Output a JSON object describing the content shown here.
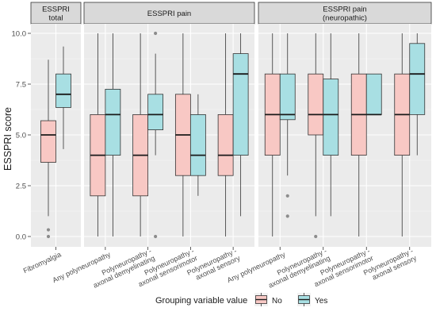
{
  "chart_data": {
    "type": "boxplot",
    "ylabel": "ESSPRI score",
    "ylim": [
      0,
      10
    ],
    "y_ticks": [
      "0.0",
      "2.5",
      "5.0",
      "7.5",
      "10.0"
    ],
    "grid": true,
    "legend": {
      "title": "Grouping variable value",
      "placement": "bottom",
      "entries": [
        {
          "label": "No",
          "color": "#f8c8c4"
        },
        {
          "label": "Yes",
          "color": "#a8dfe3"
        }
      ]
    },
    "colors": {
      "No": "#f8c8c4",
      "Yes": "#a8dfe3",
      "panel": "#ebebeb",
      "strip": "#d9d9d9",
      "outlier": "#8c8c8c"
    },
    "panels": [
      {
        "strip": [
          "ESSPRI",
          "total"
        ],
        "categories": [
          {
            "label": [
              "Fibromyalgia"
            ],
            "No": {
              "whisker_low": 1.0,
              "q1": 3.65,
              "median": 5.0,
              "q3": 5.7,
              "whisker_high": 8.7,
              "outliers": [
                0.0,
                0.33
              ]
            },
            "Yes": {
              "whisker_low": 4.3,
              "q1": 6.35,
              "median": 7.0,
              "q3": 8.0,
              "whisker_high": 9.35,
              "outliers": []
            }
          }
        ]
      },
      {
        "strip": [
          "ESSPRI pain"
        ],
        "categories": [
          {
            "label": [
              "Any polyneuropathy"
            ],
            "No": {
              "whisker_low": 0.0,
              "q1": 2.0,
              "median": 4.0,
              "q3": 6.0,
              "whisker_high": 10.0,
              "outliers": []
            },
            "Yes": {
              "whisker_low": 0.0,
              "q1": 4.0,
              "median": 6.0,
              "q3": 7.25,
              "whisker_high": 10.0,
              "outliers": []
            }
          },
          {
            "label": [
              "Polyneuropathy -",
              "axonal demyelinating"
            ],
            "No": {
              "whisker_low": 0.0,
              "q1": 2.0,
              "median": 4.0,
              "q3": 6.0,
              "whisker_high": 10.0,
              "outliers": []
            },
            "Yes": {
              "whisker_low": 4.0,
              "q1": 5.25,
              "median": 6.0,
              "q3": 7.0,
              "whisker_high": 9.0,
              "outliers": [
                0.0,
                10.0
              ]
            }
          },
          {
            "label": [
              "Polyneuropathy -",
              "axonal sensorimotor"
            ],
            "No": {
              "whisker_low": 0.0,
              "q1": 3.0,
              "median": 5.0,
              "q3": 7.0,
              "whisker_high": 10.0,
              "outliers": []
            },
            "Yes": {
              "whisker_low": 2.0,
              "q1": 3.0,
              "median": 4.0,
              "q3": 6.0,
              "whisker_high": 7.0,
              "outliers": []
            }
          },
          {
            "label": [
              "Polyneuropathy -",
              "axonal sensory"
            ],
            "No": {
              "whisker_low": 0.0,
              "q1": 3.0,
              "median": 4.0,
              "q3": 6.0,
              "whisker_high": 10.0,
              "outliers": []
            },
            "Yes": {
              "whisker_low": 1.0,
              "q1": 4.0,
              "median": 8.0,
              "q3": 9.0,
              "whisker_high": 10.0,
              "outliers": []
            }
          }
        ]
      },
      {
        "strip": [
          "ESSPRI pain",
          "(neuropathic)"
        ],
        "categories": [
          {
            "label": [
              "Any polyneuropathy"
            ],
            "No": {
              "whisker_low": 0.0,
              "q1": 4.0,
              "median": 6.0,
              "q3": 8.0,
              "whisker_high": 10.0,
              "outliers": []
            },
            "Yes": {
              "whisker_low": 3.0,
              "q1": 5.75,
              "median": 6.0,
              "q3": 8.0,
              "whisker_high": 10.0,
              "outliers": [
                1.0,
                2.0
              ]
            }
          },
          {
            "label": [
              "Polyneuropathy -",
              "axonal demyelinating"
            ],
            "No": {
              "whisker_low": 1.0,
              "q1": 5.0,
              "median": 6.0,
              "q3": 8.0,
              "whisker_high": 10.0,
              "outliers": [
                0.0
              ]
            },
            "Yes": {
              "whisker_low": 1.0,
              "q1": 4.0,
              "median": 6.0,
              "q3": 7.75,
              "whisker_high": 10.0,
              "outliers": []
            }
          },
          {
            "label": [
              "Polyneuropathy -",
              "axonal sensorimotor"
            ],
            "No": {
              "whisker_low": 0.0,
              "q1": 4.0,
              "median": 6.0,
              "q3": 8.0,
              "whisker_high": 10.0,
              "outliers": []
            },
            "Yes": {
              "whisker_low": 6.0,
              "q1": 6.0,
              "median": 6.0,
              "q3": 8.0,
              "whisker_high": 8.0,
              "outliers": []
            }
          },
          {
            "label": [
              "Polyneuropathy -",
              "axonal sensory"
            ],
            "No": {
              "whisker_low": 0.0,
              "q1": 4.0,
              "median": 6.0,
              "q3": 8.0,
              "whisker_high": 10.0,
              "outliers": []
            },
            "Yes": {
              "whisker_low": 4.0,
              "q1": 6.0,
              "median": 8.0,
              "q3": 9.5,
              "whisker_high": 10.0,
              "outliers": []
            }
          }
        ]
      }
    ]
  }
}
